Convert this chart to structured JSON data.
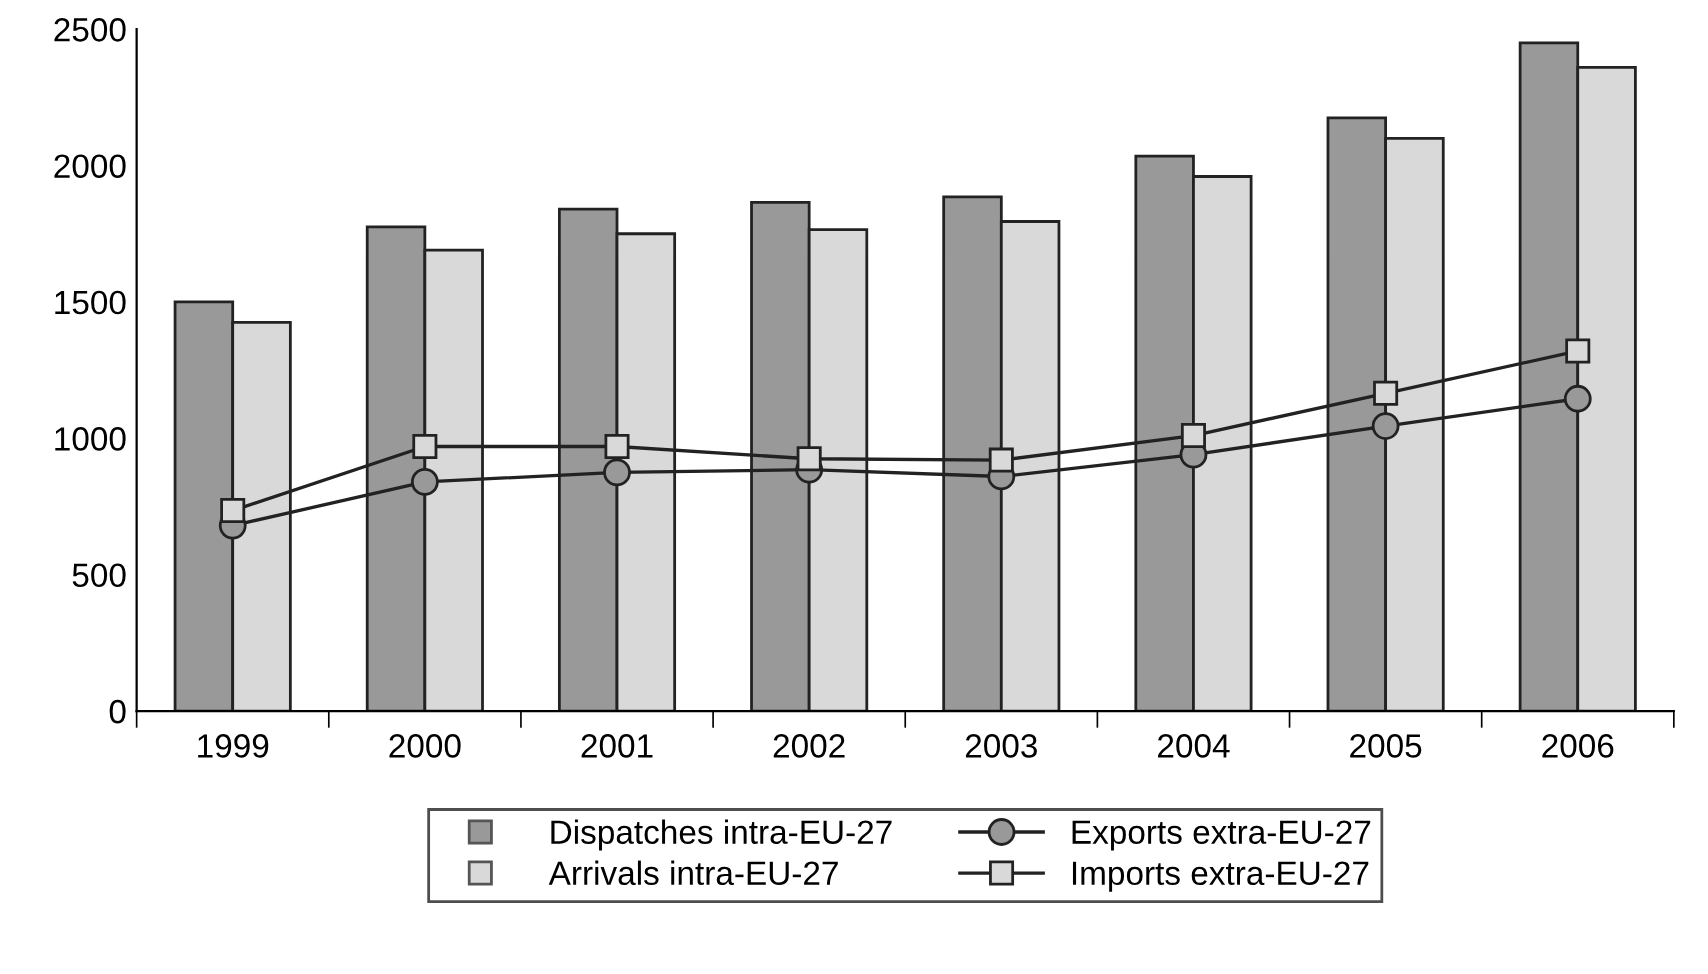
{
  "chart_data": {
    "type": "bar",
    "categories": [
      "1999",
      "2000",
      "2001",
      "2002",
      "2003",
      "2004",
      "2005",
      "2006"
    ],
    "series": [
      {
        "name": "Dispatches intra-EU-27",
        "color": "#999999",
        "values": [
          1500,
          1775,
          1840,
          1865,
          1885,
          2035,
          2175,
          2450
        ]
      },
      {
        "name": "Arrivals intra-EU-27",
        "color": "#d9d9d9",
        "values": [
          1425,
          1690,
          1750,
          1765,
          1795,
          1960,
          2100,
          2360
        ]
      },
      {
        "name": "Exports extra-EU-27",
        "type": "line",
        "color": "#999999",
        "marker": "circle",
        "values": [
          680,
          840,
          875,
          885,
          860,
          940,
          1045,
          1145
        ]
      },
      {
        "name": "Imports extra-EU-27",
        "type": "line",
        "color": "#d9d9d9",
        "marker": "square",
        "values": [
          735,
          970,
          970,
          925,
          920,
          1010,
          1165,
          1320
        ]
      }
    ],
    "ylim": [
      0,
      2500
    ],
    "yticks": [
      0,
      500,
      1000,
      1500,
      2000,
      2500
    ],
    "grid": false,
    "legend": "bottom"
  }
}
